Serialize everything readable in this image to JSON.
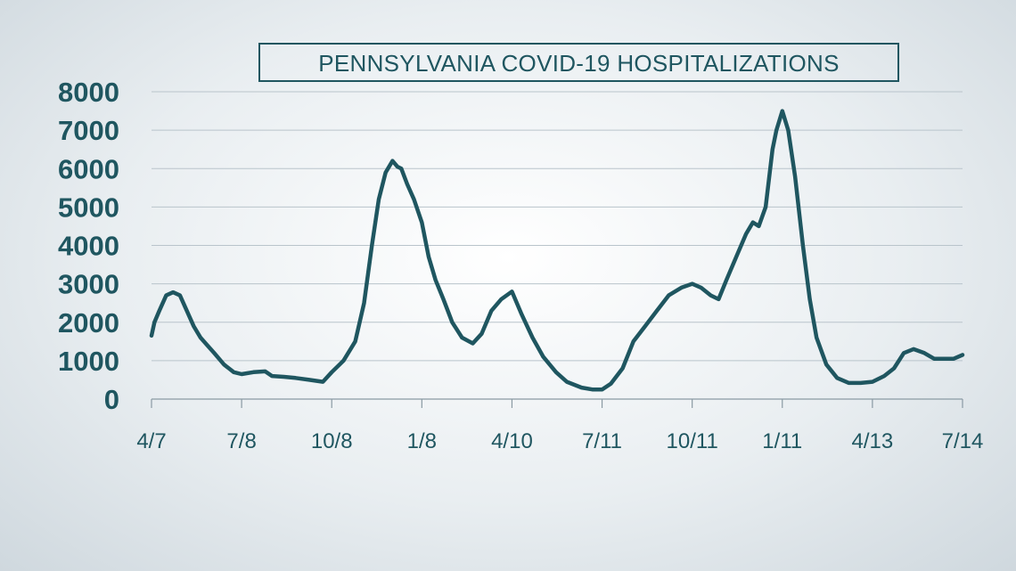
{
  "chart_data": {
    "type": "line",
    "title": "PENNSYLVANIA COVID-19 HOSPITALIZATIONS",
    "xlabel": "",
    "ylabel": "",
    "ylim": [
      0,
      8000
    ],
    "yticks": [
      0,
      1000,
      2000,
      3000,
      4000,
      5000,
      6000,
      7000,
      8000
    ],
    "ytick_labels": [
      "0",
      "1000",
      "2000",
      "3000",
      "4000",
      "5000",
      "6000",
      "7000",
      "8000"
    ],
    "xlim": [
      "2020-04-07",
      "2022-07-14"
    ],
    "xticks": [
      "2020-04-07",
      "2020-07-08",
      "2020-10-08",
      "2021-01-08",
      "2021-04-10",
      "2021-07-11",
      "2021-10-11",
      "2022-01-11",
      "2022-04-13",
      "2022-07-14"
    ],
    "xtick_labels": [
      "4/7",
      "7/8",
      "10/8",
      "1/8",
      "4/10",
      "7/11",
      "10/11",
      "1/11",
      "4/13",
      "7/14"
    ],
    "grid": true,
    "line_color": "#1f5660",
    "series": [
      {
        "x": [
          "2020-04-07",
          "2020-04-10",
          "2020-04-15",
          "2020-04-22",
          "2020-04-29",
          "2020-05-06",
          "2020-05-13",
          "2020-05-20",
          "2020-05-27",
          "2020-06-03",
          "2020-06-10",
          "2020-06-20",
          "2020-06-30",
          "2020-07-08",
          "2020-07-20",
          "2020-08-01",
          "2020-08-08",
          "2020-08-20",
          "2020-09-01",
          "2020-09-15",
          "2020-09-29",
          "2020-10-08",
          "2020-10-20",
          "2020-11-01",
          "2020-11-10",
          "2020-11-18",
          "2020-11-25",
          "2020-12-02",
          "2020-12-09",
          "2020-12-14",
          "2020-12-18",
          "2020-12-24",
          "2020-12-31",
          "2021-01-08",
          "2021-01-15",
          "2021-01-22",
          "2021-01-30",
          "2021-02-08",
          "2021-02-18",
          "2021-03-01",
          "2021-03-10",
          "2021-03-20",
          "2021-03-30",
          "2021-04-10",
          "2021-04-20",
          "2021-05-01",
          "2021-05-12",
          "2021-05-25",
          "2021-06-05",
          "2021-06-20",
          "2021-07-01",
          "2021-07-11",
          "2021-07-20",
          "2021-08-01",
          "2021-08-12",
          "2021-08-24",
          "2021-09-05",
          "2021-09-17",
          "2021-09-30",
          "2021-10-11",
          "2021-10-20",
          "2021-10-30",
          "2021-11-07",
          "2021-11-15",
          "2021-11-25",
          "2021-12-05",
          "2021-12-12",
          "2021-12-18",
          "2021-12-25",
          "2022-01-01",
          "2022-01-05",
          "2022-01-11",
          "2022-01-17",
          "2022-01-24",
          "2022-02-01",
          "2022-02-08",
          "2022-02-15",
          "2022-02-25",
          "2022-03-08",
          "2022-03-20",
          "2022-04-01",
          "2022-04-13",
          "2022-04-25",
          "2022-05-05",
          "2022-05-15",
          "2022-05-25",
          "2022-06-05",
          "2022-06-15",
          "2022-06-25",
          "2022-07-05",
          "2022-07-14"
        ],
        "y": [
          1650,
          2000,
          2300,
          2700,
          2780,
          2700,
          2300,
          1900,
          1600,
          1400,
          1200,
          900,
          700,
          650,
          700,
          720,
          600,
          580,
          550,
          500,
          450,
          700,
          1000,
          1500,
          2500,
          4000,
          5200,
          5900,
          6200,
          6050,
          6000,
          5600,
          5200,
          4600,
          3700,
          3100,
          2600,
          2000,
          1600,
          1450,
          1700,
          2300,
          2600,
          2800,
          2200,
          1600,
          1100,
          700,
          450,
          300,
          250,
          250,
          400,
          800,
          1500,
          1900,
          2300,
          2700,
          2900,
          3000,
          2900,
          2700,
          2600,
          3100,
          3700,
          4300,
          4600,
          4500,
          5000,
          6500,
          7000,
          7500,
          7000,
          5800,
          4000,
          2600,
          1600,
          900,
          550,
          420,
          420,
          450,
          600,
          800,
          1200,
          1300,
          1200,
          1050,
          1050,
          1050,
          1150
        ]
      }
    ]
  }
}
